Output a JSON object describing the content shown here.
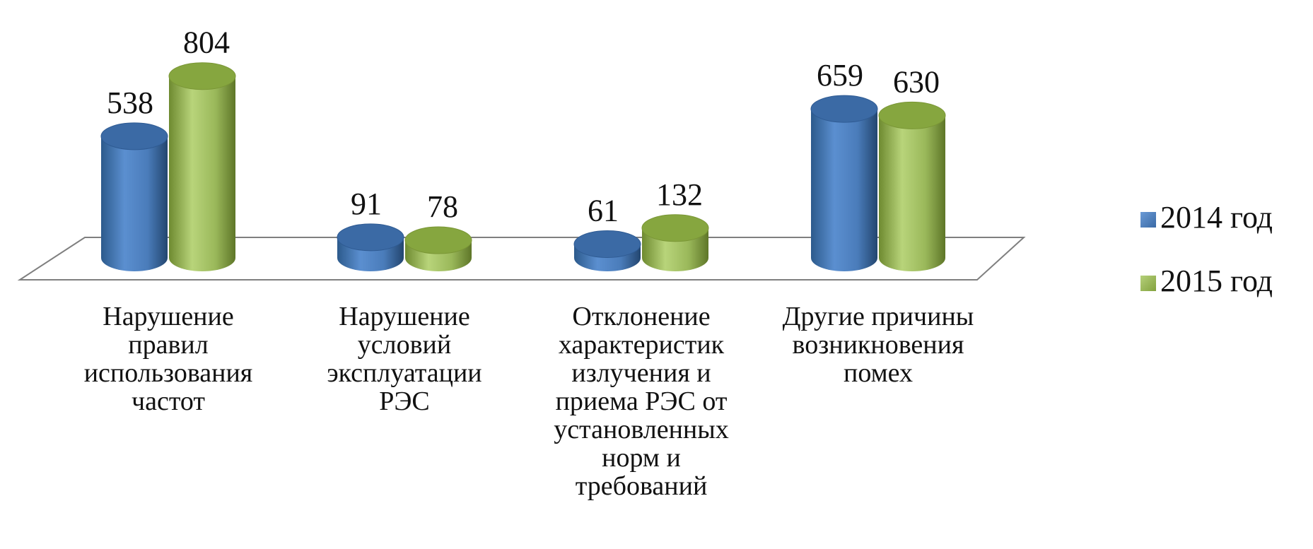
{
  "chart_data": {
    "type": "bar",
    "style": "3d-cylinder",
    "categories": [
      [
        "Нарушение",
        "правил",
        "использования",
        "частот"
      ],
      [
        "Нарушение",
        "условий",
        "эксплуатации",
        "РЭС"
      ],
      [
        "Отклонение",
        "характеристик",
        "излучения и",
        "приема РЭС от",
        "установленных",
        "норм и",
        "требований"
      ],
      [
        "Другие причины",
        "возникновения",
        "помех"
      ]
    ],
    "series": [
      {
        "name": "2014 год",
        "values": [
          538,
          91,
          61,
          659
        ],
        "color": "#4f81bd"
      },
      {
        "name": "2015 год",
        "values": [
          804,
          78,
          132,
          630
        ],
        "color": "#9bbb59"
      }
    ],
    "ylim": [
      0,
      900
    ],
    "grid": false,
    "legend": "right",
    "title": "",
    "xlabel": "",
    "ylabel": ""
  }
}
